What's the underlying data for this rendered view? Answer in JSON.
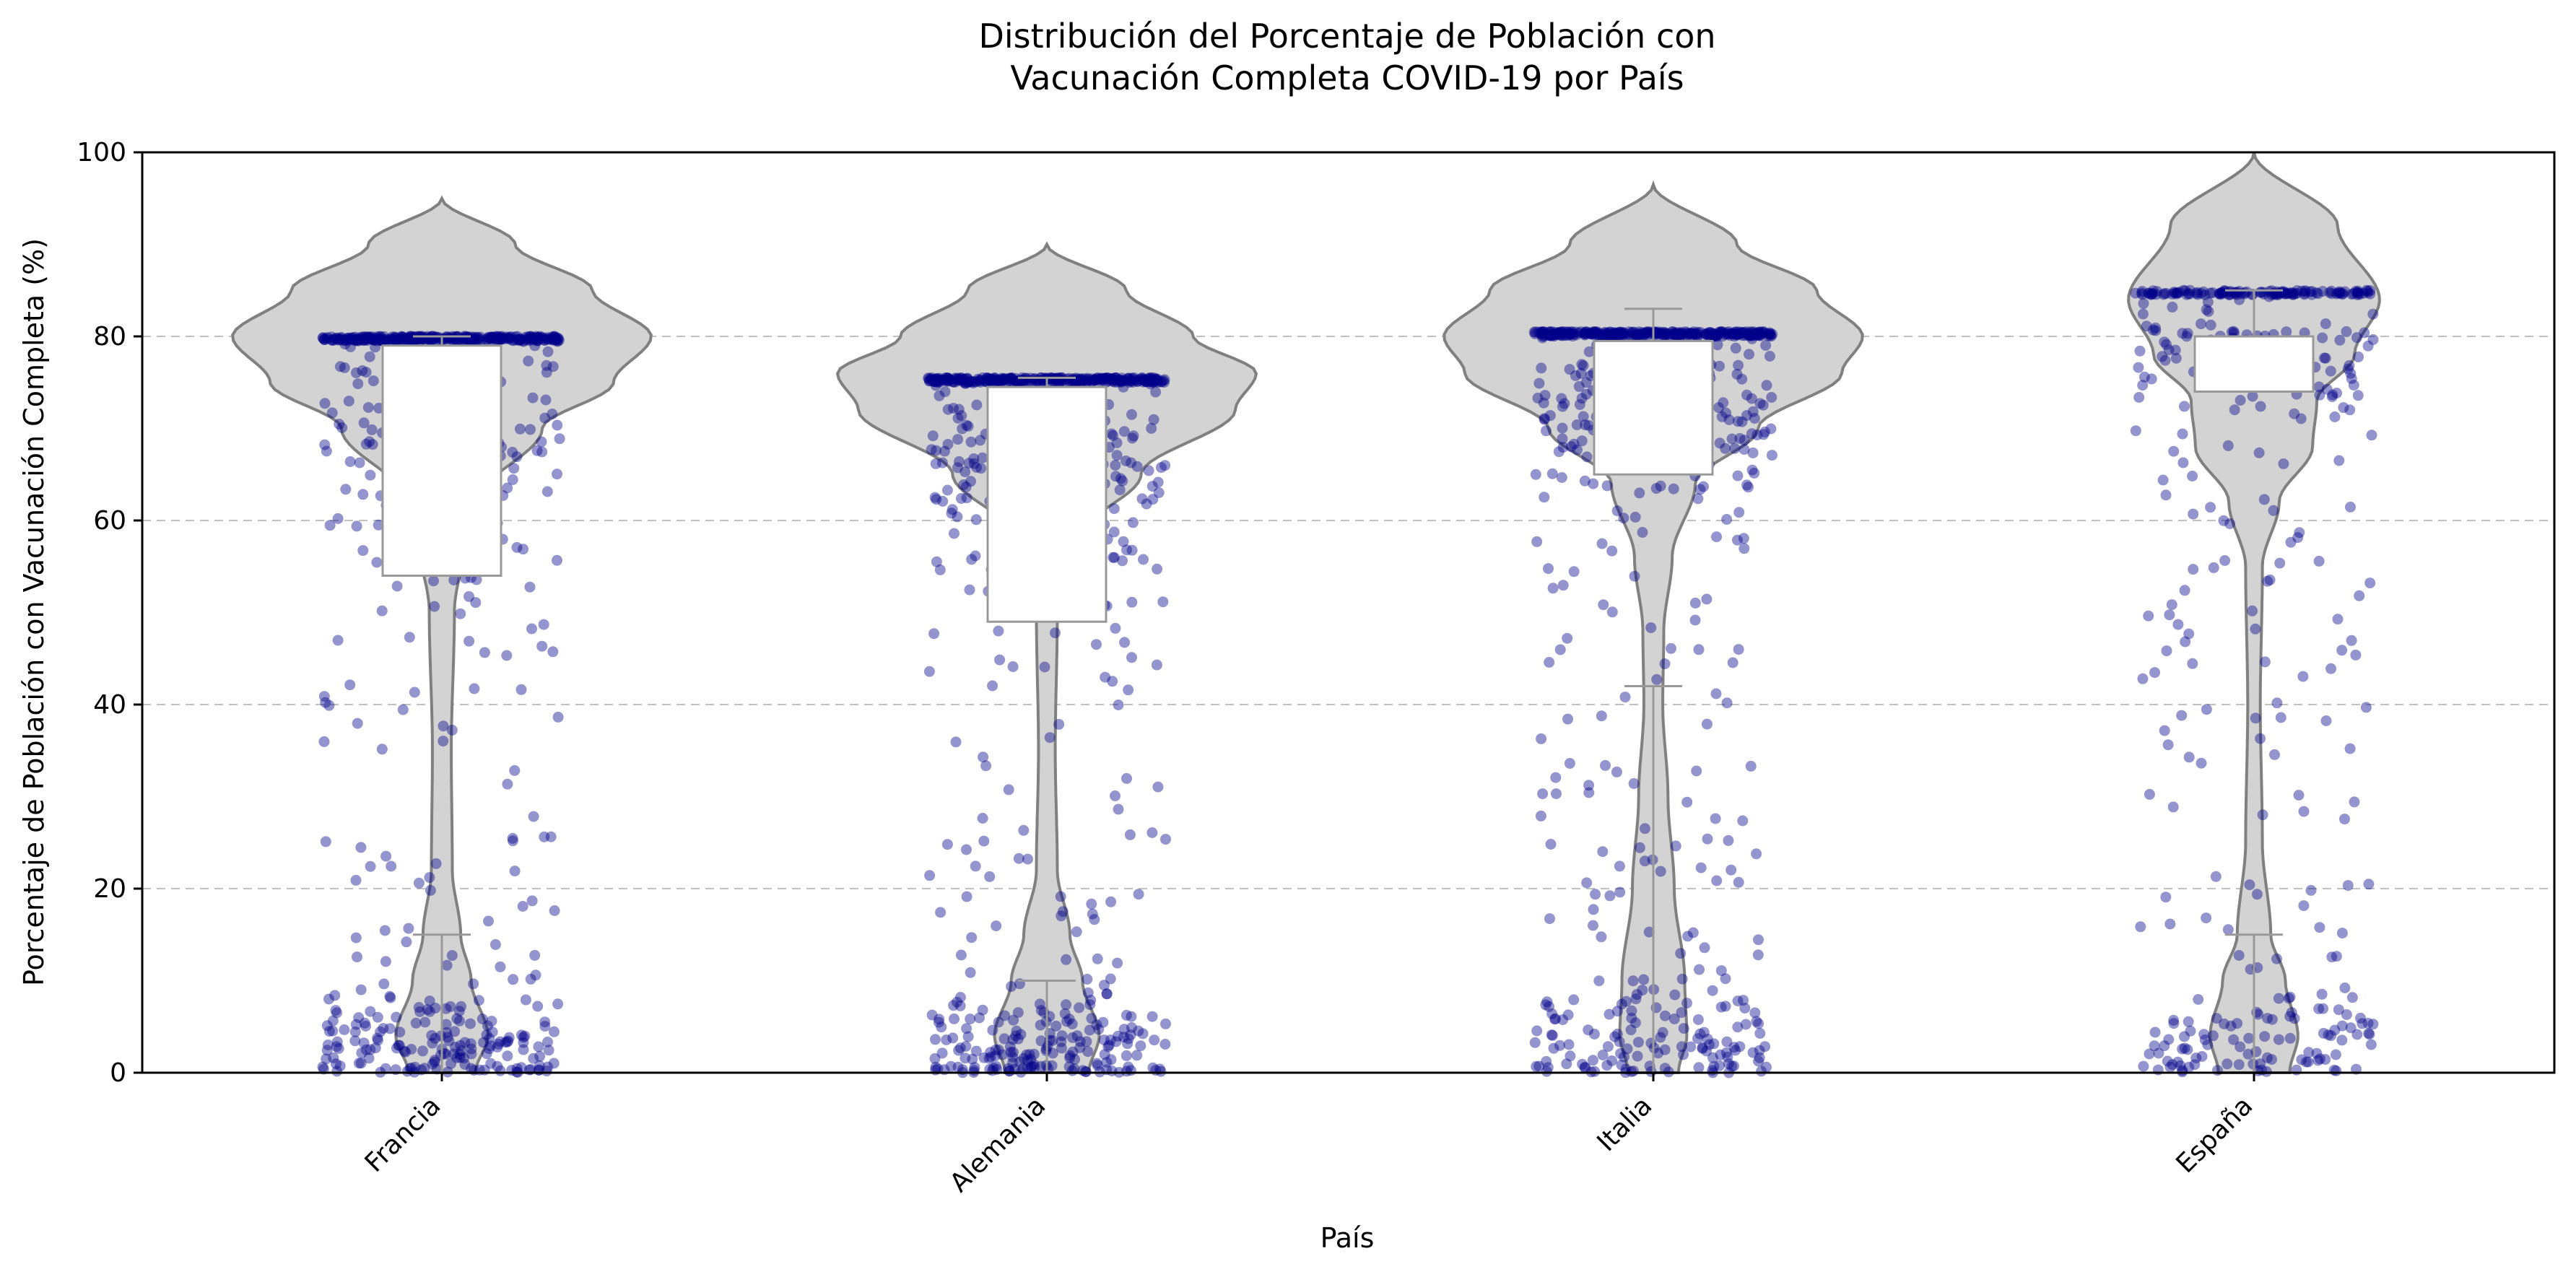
{
  "chart_data": {
    "type": "violin",
    "title": [
      "Distribución del Porcentaje de Población con",
      "Vacunación Completa COVID-19 por País"
    ],
    "xlabel": "País",
    "ylabel": "Porcentaje de Población con Vacunación Completa (%)",
    "ylim": [
      0,
      100
    ],
    "yticks": [
      0,
      20,
      40,
      60,
      80,
      100
    ],
    "grid": "horizontal dashed",
    "categories": [
      "Francia",
      "Alemania",
      "Italia",
      "España"
    ],
    "colors": {
      "violin_fill": "#d3d3d3",
      "violin_edge": "#808080",
      "points": "#00008b",
      "box_edge": "#999999",
      "grid": "#c0c0c0"
    },
    "boxes": [
      {
        "name": "Francia",
        "whisker_low": 0,
        "q1": 15,
        "median": 54,
        "q3": 79,
        "whisker_high": 80
      },
      {
        "name": "Alemania",
        "whisker_low": 0,
        "q1": 10,
        "median": 49,
        "q3": 74.5,
        "whisker_high": 75.5
      },
      {
        "name": "Italia",
        "whisker_low": 0,
        "q1": 42,
        "median": 65,
        "q3": 79.5,
        "whisker_high": 83
      },
      {
        "name": "España",
        "whisker_low": 0,
        "q1": 15,
        "median": 74,
        "q3": 80,
        "whisker_high": 85
      }
    ],
    "violins": [
      {
        "name": "Francia",
        "max": 95,
        "width_profile": [
          [
            0,
            0.16
          ],
          [
            4,
            0.22
          ],
          [
            10,
            0.14
          ],
          [
            15,
            0.09
          ],
          [
            22,
            0.05
          ],
          [
            35,
            0.045
          ],
          [
            50,
            0.06
          ],
          [
            62,
            0.16
          ],
          [
            70,
            0.48
          ],
          [
            75,
            0.82
          ],
          [
            80,
            1.0
          ],
          [
            85,
            0.72
          ],
          [
            90,
            0.35
          ],
          [
            95,
            0
          ]
        ]
      },
      {
        "name": "Alemania",
        "max": 90,
        "width_profile": [
          [
            0,
            0.2
          ],
          [
            4,
            0.25
          ],
          [
            10,
            0.17
          ],
          [
            15,
            0.11
          ],
          [
            22,
            0.05
          ],
          [
            35,
            0.04
          ],
          [
            50,
            0.05
          ],
          [
            58,
            0.14
          ],
          [
            65,
            0.45
          ],
          [
            72,
            0.9
          ],
          [
            76,
            1.0
          ],
          [
            80,
            0.7
          ],
          [
            85,
            0.38
          ],
          [
            90,
            0
          ]
        ]
      },
      {
        "name": "Italia",
        "max": 96.5,
        "width_profile": [
          [
            0,
            0.12
          ],
          [
            4,
            0.16
          ],
          [
            10,
            0.15
          ],
          [
            20,
            0.1
          ],
          [
            30,
            0.07
          ],
          [
            40,
            0.045
          ],
          [
            48,
            0.05
          ],
          [
            56,
            0.09
          ],
          [
            64,
            0.2
          ],
          [
            70,
            0.5
          ],
          [
            76,
            0.9
          ],
          [
            80,
            1.0
          ],
          [
            85,
            0.78
          ],
          [
            90,
            0.4
          ],
          [
            96.5,
            0
          ]
        ]
      },
      {
        "name": "España",
        "max": 100,
        "width_profile": [
          [
            0,
            0.17
          ],
          [
            4,
            0.21
          ],
          [
            10,
            0.15
          ],
          [
            15,
            0.08
          ],
          [
            25,
            0.04
          ],
          [
            40,
            0.03
          ],
          [
            55,
            0.04
          ],
          [
            62,
            0.12
          ],
          [
            68,
            0.28
          ],
          [
            73,
            0.3
          ],
          [
            78,
            0.48
          ],
          [
            84,
            0.6
          ],
          [
            92,
            0.4
          ],
          [
            100,
            0
          ]
        ]
      }
    ],
    "points": [
      {
        "name": "Francia",
        "n": 700,
        "plateau": 80,
        "mix": [
          [
            0.42,
            "plateau"
          ],
          [
            0.2,
            70,
            8
          ],
          [
            0.2,
            3,
            3
          ],
          [
            0.18,
            "uniform",
            0,
            80
          ]
        ]
      },
      {
        "name": "Alemania",
        "n": 720,
        "plateau": 75.5,
        "mix": [
          [
            0.4,
            "plateau"
          ],
          [
            0.22,
            67,
            7
          ],
          [
            0.22,
            3,
            3
          ],
          [
            0.16,
            "uniform",
            0,
            75
          ]
        ]
      },
      {
        "name": "Italia",
        "n": 680,
        "plateau": 80.5,
        "mix": [
          [
            0.4,
            "plateau"
          ],
          [
            0.25,
            73,
            6
          ],
          [
            0.15,
            3,
            3
          ],
          [
            0.2,
            "uniform",
            0,
            80
          ]
        ]
      },
      {
        "name": "España",
        "n": 420,
        "plateau": 85,
        "mix": [
          [
            0.3,
            "plateau"
          ],
          [
            0.22,
            79,
            3
          ],
          [
            0.18,
            3,
            3
          ],
          [
            0.3,
            "uniform",
            0,
            80
          ]
        ]
      }
    ]
  }
}
